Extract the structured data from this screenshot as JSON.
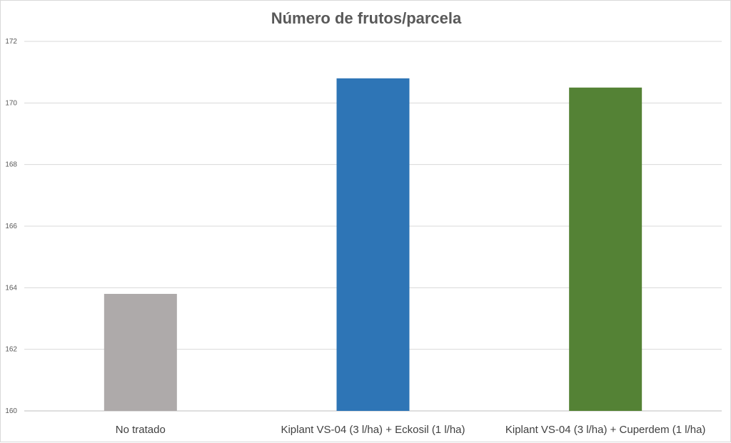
{
  "chart_data": {
    "type": "bar",
    "title": "Número de frutos/parcela",
    "categories": [
      "No tratado",
      "Kiplant VS-04 (3 l/ha) + Eckosil (1 l/ha)",
      "Kiplant VS-04 (3 l/ha) + Cuperdem (1 l/ha)"
    ],
    "values": [
      163.8,
      170.8,
      170.5
    ],
    "colors": [
      "#aeaaaa",
      "#2e75b6",
      "#548235"
    ],
    "ylim": [
      160,
      172
    ],
    "yticks": [
      "160",
      "162",
      "164",
      "166",
      "168",
      "170",
      "172"
    ],
    "grid": true,
    "legend": "none",
    "xlabel": "",
    "ylabel": ""
  }
}
